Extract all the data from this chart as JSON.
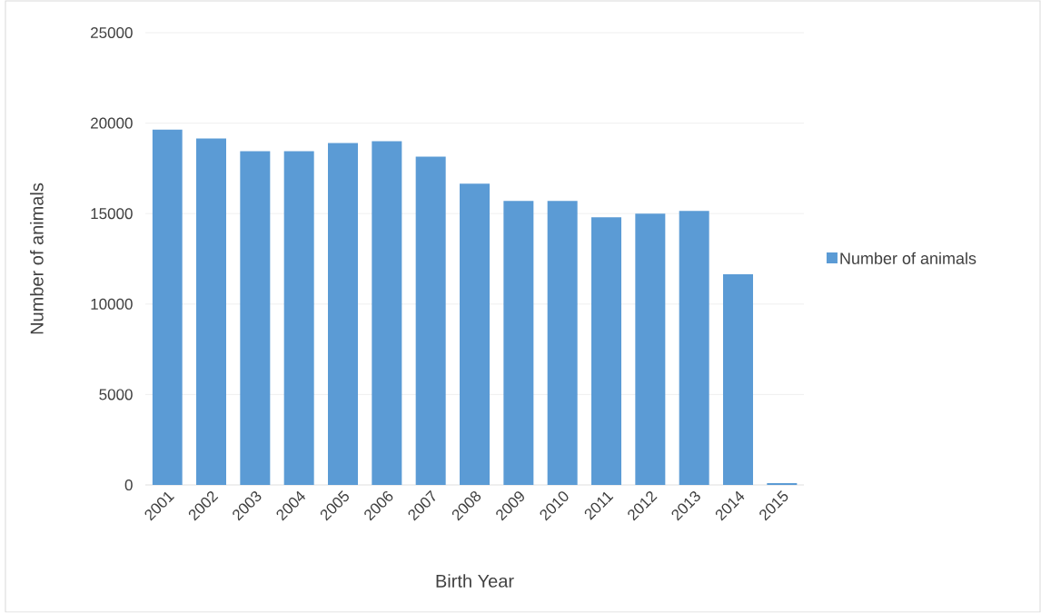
{
  "chart_data": {
    "type": "bar",
    "xlabel": "Birth Year",
    "ylabel": "Number of animals",
    "categories": [
      "2001",
      "2002",
      "2003",
      "2004",
      "2005",
      "2006",
      "2007",
      "2008",
      "2009",
      "2010",
      "2011",
      "2012",
      "2013",
      "2014",
      "2015"
    ],
    "series": [
      {
        "name": "Number of animals",
        "color": "#5b9bd5",
        "values": [
          19650,
          19150,
          18450,
          18450,
          18900,
          19000,
          18150,
          16650,
          15700,
          15700,
          14800,
          15000,
          15150,
          11650,
          100
        ]
      }
    ],
    "ylim": [
      0,
      25000
    ],
    "yticks": [
      0,
      5000,
      10000,
      15000,
      20000,
      25000
    ],
    "grid": "y",
    "legend": "right"
  }
}
